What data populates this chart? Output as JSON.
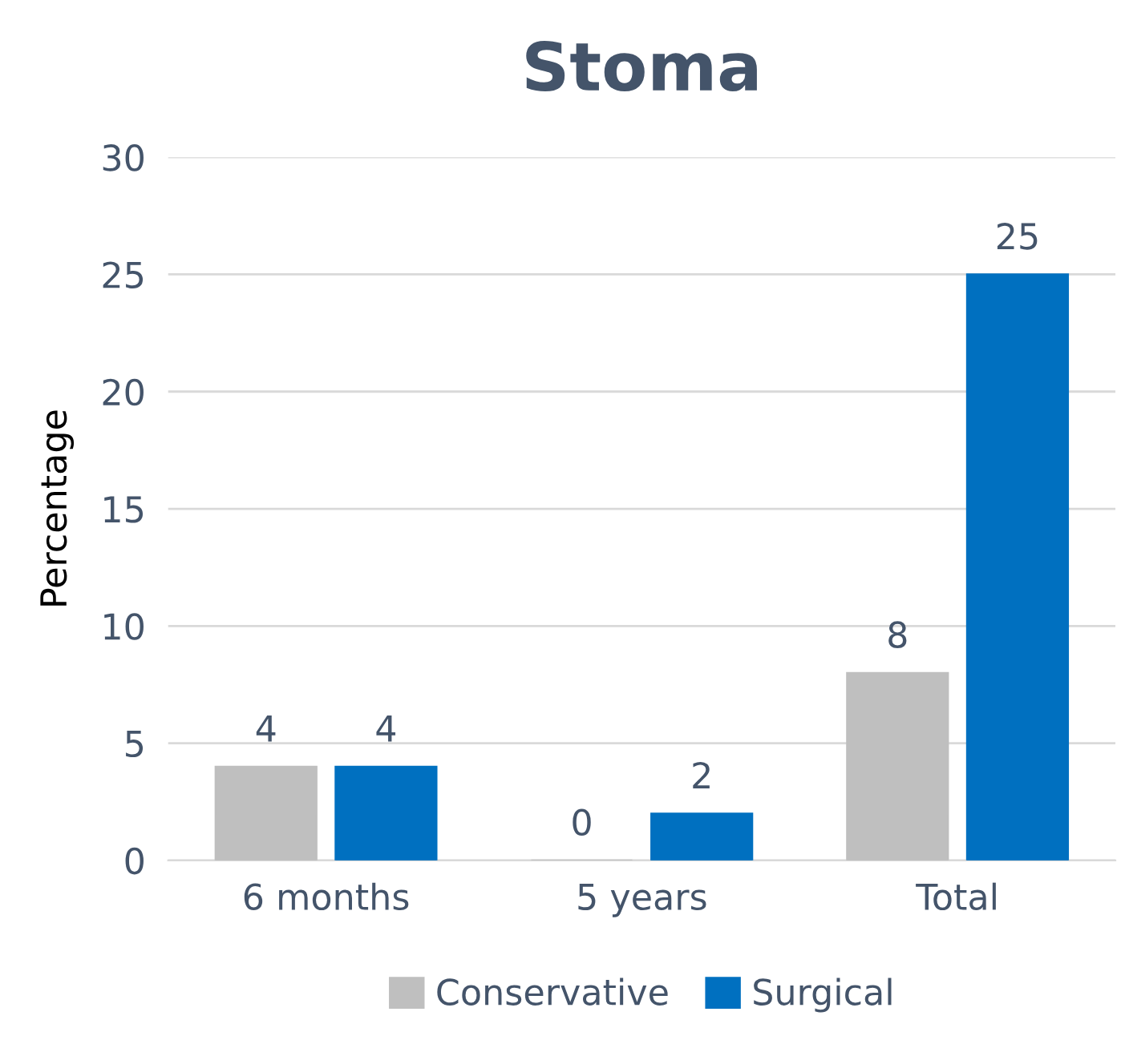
{
  "chart_data": {
    "type": "bar",
    "title": "Stoma",
    "ylabel": "Percentage",
    "categories": [
      "6 months",
      "5 years",
      "Total"
    ],
    "series": [
      {
        "name": "Conservative",
        "color": "#bfbfbf",
        "values": [
          4,
          0,
          8
        ]
      },
      {
        "name": "Surgical",
        "color": "#0070c0",
        "values": [
          4,
          2,
          25
        ]
      }
    ],
    "ylim": [
      0,
      30
    ],
    "yticks": [
      0,
      5,
      10,
      15,
      20,
      25,
      30
    ],
    "grid": "y",
    "legend": "bottom",
    "data_labels": true
  }
}
